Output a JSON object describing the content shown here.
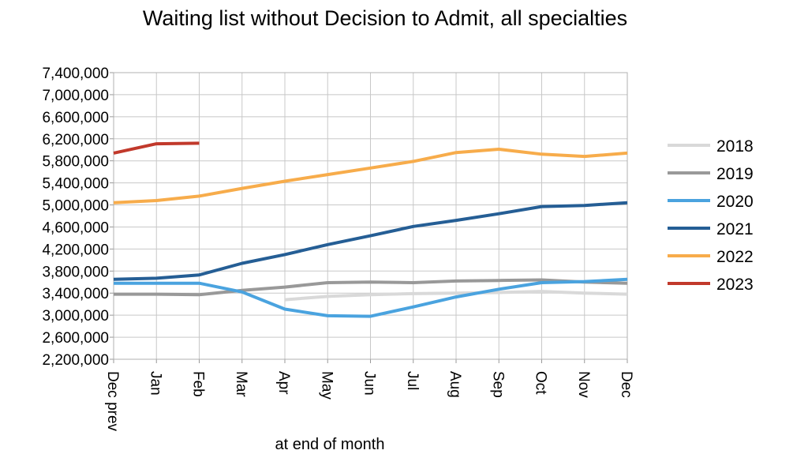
{
  "chart_data": {
    "type": "line",
    "title": "Waiting list without Decision to Admit, all specialties",
    "xlabel": "at end of month",
    "ylabel": "",
    "categories": [
      "Dec prev",
      "Jan",
      "Feb",
      "Mar",
      "Apr",
      "May",
      "Jun",
      "Jul",
      "Aug",
      "Sep",
      "Oct",
      "Nov",
      "Dec"
    ],
    "ylim": [
      2200000,
      7400000
    ],
    "yticks": [
      2200000,
      2600000,
      3000000,
      3400000,
      3800000,
      4200000,
      4600000,
      5000000,
      5400000,
      5800000,
      6200000,
      6600000,
      7000000,
      7400000
    ],
    "ytick_labels": [
      "2,200,000",
      "2,600,000",
      "3,000,000",
      "3,400,000",
      "3,800,000",
      "4,200,000",
      "4,600,000",
      "5,000,000",
      "5,400,000",
      "5,800,000",
      "6,200,000",
      "6,600,000",
      "7,000,000",
      "7,400,000"
    ],
    "grid": true,
    "legend_position": "right",
    "series": [
      {
        "name": "2018",
        "color": "#d9d9d9",
        "values": [
          null,
          null,
          null,
          null,
          3280000,
          3340000,
          3370000,
          3390000,
          3400000,
          3410000,
          3430000,
          3400000,
          3380000
        ]
      },
      {
        "name": "2019",
        "color": "#999999",
        "values": [
          3380000,
          3380000,
          3370000,
          3450000,
          3510000,
          3590000,
          3600000,
          3590000,
          3620000,
          3630000,
          3640000,
          3600000,
          3580000
        ]
      },
      {
        "name": "2020",
        "color": "#4aa3df",
        "values": [
          3580000,
          3580000,
          3580000,
          3420000,
          3110000,
          2990000,
          2980000,
          3150000,
          3330000,
          3470000,
          3590000,
          3610000,
          3650000
        ]
      },
      {
        "name": "2021",
        "color": "#255e95",
        "values": [
          3650000,
          3670000,
          3730000,
          3940000,
          4100000,
          4280000,
          4440000,
          4610000,
          4720000,
          4840000,
          4970000,
          4990000,
          5040000
        ]
      },
      {
        "name": "2022",
        "color": "#f7ac4b",
        "values": [
          5040000,
          5080000,
          5160000,
          5300000,
          5430000,
          5550000,
          5670000,
          5790000,
          5950000,
          6010000,
          5920000,
          5880000,
          5940000
        ]
      },
      {
        "name": "2023",
        "color": "#c1392b",
        "values": [
          5940000,
          6110000,
          6120000,
          null,
          null,
          null,
          null,
          null,
          null,
          null,
          null,
          null,
          null
        ]
      }
    ]
  }
}
